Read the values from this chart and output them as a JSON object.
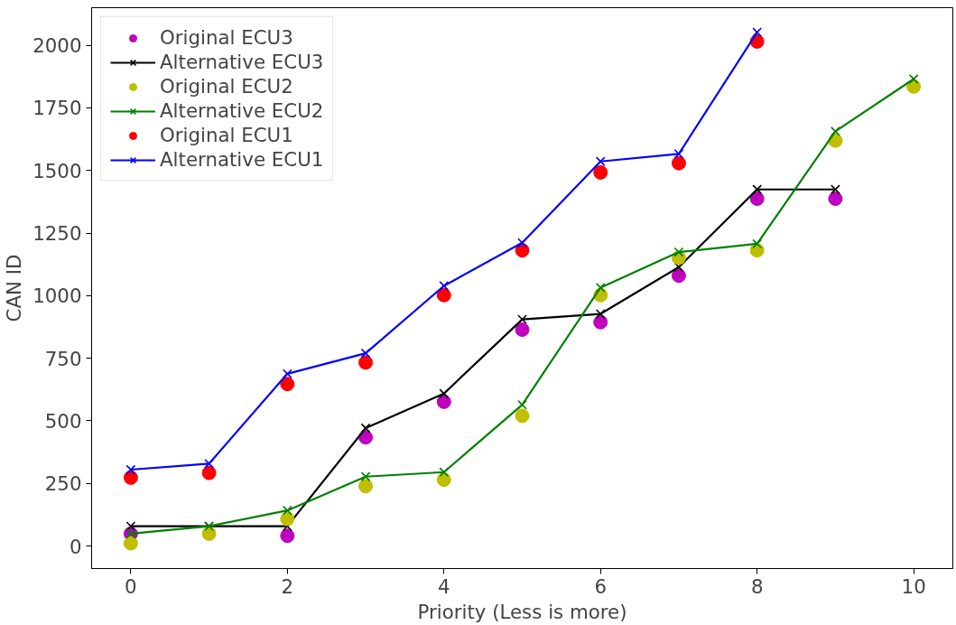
{
  "chart_data": {
    "type": "line",
    "xlabel": "Priority (Less is more)",
    "ylabel": "CAN ID",
    "xlim": [
      -0.5,
      10.5
    ],
    "ylim": [
      -90,
      2150
    ],
    "xticks": [
      0,
      2,
      4,
      6,
      8,
      10
    ],
    "yticks": [
      0,
      250,
      500,
      750,
      1000,
      1250,
      1500,
      1750,
      2000
    ],
    "grid": false,
    "legend": "top left",
    "series": [
      {
        "name": "Original ECU3",
        "type": "scatter",
        "marker": "circle",
        "color": "#bf00bf",
        "x": [
          0,
          1,
          2,
          3,
          4,
          5,
          6,
          7,
          8,
          9
        ],
        "values": [
          49,
          null,
          41,
          434,
          576,
          864,
          894,
          1080,
          1387,
          1387
        ]
      },
      {
        "name": "Alternative ECU3",
        "marker": "cross",
        "color": "#000000",
        "x": [
          0,
          1,
          2,
          3,
          4,
          5,
          6,
          7,
          8,
          9
        ],
        "values": [
          79,
          79,
          79,
          471,
          609,
          905,
          927,
          1114,
          1424,
          1424
        ]
      },
      {
        "name": "Original ECU2",
        "type": "scatter",
        "marker": "circle",
        "color": "#bfbf00",
        "x": [
          0,
          1,
          2,
          3,
          4,
          5,
          6,
          7,
          8,
          9,
          10
        ],
        "values": [
          11,
          49,
          108,
          239,
          265,
          520,
          1002,
          1151,
          1181,
          1619,
          1835
        ]
      },
      {
        "name": "Alternative ECU2",
        "marker": "cross",
        "color": "#008000",
        "x": [
          0,
          1,
          2,
          3,
          4,
          5,
          6,
          7,
          8,
          9,
          10
        ],
        "values": [
          49,
          79,
          142,
          277,
          295,
          564,
          1032,
          1174,
          1207,
          1656,
          1865
        ]
      },
      {
        "name": "Original ECU1",
        "type": "scatter",
        "marker": "circle",
        "color": "#ff0000",
        "x": [
          0,
          1,
          2,
          3,
          4,
          5,
          6,
          7,
          8
        ],
        "values": [
          273,
          292,
          647,
          733,
          1002,
          1181,
          1492,
          1529,
          2015
        ]
      },
      {
        "name": "Alternative ECU1",
        "marker": "cross",
        "color": "#0000ff",
        "x": [
          0,
          1,
          2,
          3,
          4,
          5,
          6,
          7,
          8
        ],
        "values": [
          305,
          329,
          688,
          770,
          1039,
          1211,
          1536,
          1566,
          2052
        ]
      }
    ]
  }
}
